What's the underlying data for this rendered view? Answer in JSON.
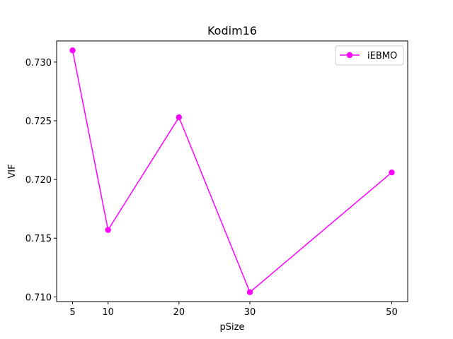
{
  "chart_data": {
    "type": "line",
    "title": "Kodim16",
    "xlabel": "pSize",
    "ylabel": "VIF",
    "x": [
      5,
      10,
      20,
      30,
      50
    ],
    "x_ticks": [
      5,
      10,
      20,
      30,
      50
    ],
    "x_tick_labels": [
      "5",
      "10",
      "20",
      "30",
      "50"
    ],
    "y_ticks": [
      0.71,
      0.715,
      0.72,
      0.725,
      0.73
    ],
    "y_tick_labels": [
      "0.710",
      "0.715",
      "0.720",
      "0.725",
      "0.730"
    ],
    "xlim": [
      2.75,
      52.25
    ],
    "ylim": [
      0.7096,
      0.7318
    ],
    "grid": false,
    "legend_position": "top-right",
    "series": [
      {
        "name": "iEBMO",
        "color": "#ff00ff",
        "marker": "circle",
        "values": [
          0.731,
          0.7157,
          0.7253,
          0.7104,
          0.7206
        ]
      }
    ]
  }
}
